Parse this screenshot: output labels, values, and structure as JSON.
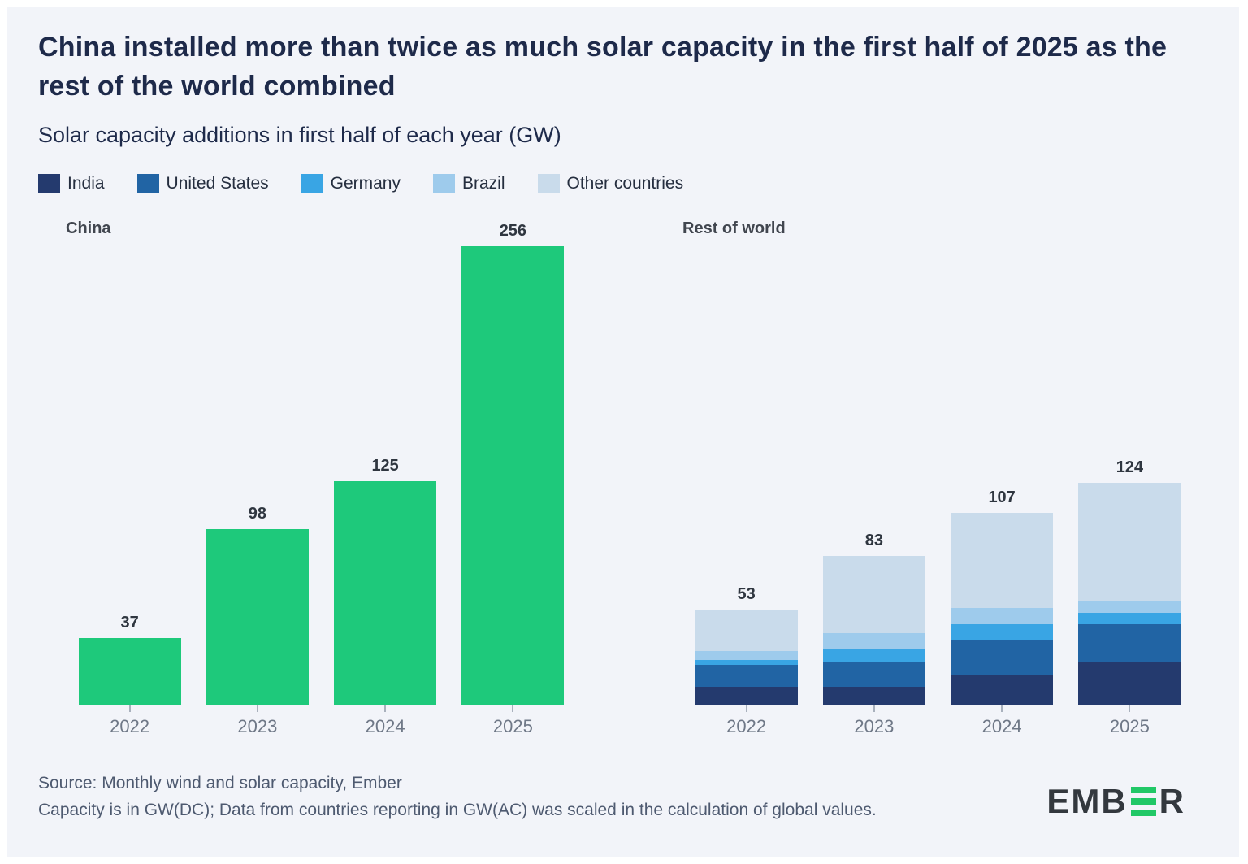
{
  "header": {
    "title": "China installed more than twice as much solar capacity in the first half of 2025 as the rest of the world combined",
    "subtitle": "Solar capacity additions in first half of each year (GW)"
  },
  "legend": [
    {
      "label": "India",
      "color": "#243A6E"
    },
    {
      "label": "United States",
      "color": "#2164A4"
    },
    {
      "label": "Germany",
      "color": "#39A5E4"
    },
    {
      "label": "Brazil",
      "color": "#9ECBEC"
    },
    {
      "label": "Other countries",
      "color": "#C9DBEB"
    }
  ],
  "chart_data": [
    {
      "type": "bar",
      "title": "China",
      "categories": [
        "2022",
        "2023",
        "2024",
        "2025"
      ],
      "values": [
        37,
        98,
        125,
        256
      ],
      "color": "#1EC97B",
      "ylabel": "GW",
      "ylim": [
        0,
        256
      ],
      "grid": false,
      "value_labels": true
    },
    {
      "type": "stacked-bar",
      "title": "Rest of world",
      "categories": [
        "2022",
        "2023",
        "2024",
        "2025"
      ],
      "totals": [
        53,
        83,
        107,
        124
      ],
      "series": [
        {
          "name": "India",
          "color": "#243A6E",
          "values": [
            10,
            10,
            16,
            24
          ]
        },
        {
          "name": "United States",
          "color": "#2164A4",
          "values": [
            12,
            14,
            20,
            21
          ]
        },
        {
          "name": "Germany",
          "color": "#39A5E4",
          "values": [
            3,
            7,
            9,
            6
          ]
        },
        {
          "name": "Brazil",
          "color": "#9ECBEC",
          "values": [
            5,
            9,
            9,
            7
          ]
        },
        {
          "name": "Other countries",
          "color": "#C9DBEB",
          "values": [
            23,
            43,
            53,
            66
          ]
        }
      ],
      "ylabel": "GW",
      "ylim": [
        0,
        256
      ],
      "grid": false,
      "value_labels": true
    }
  ],
  "footer": {
    "source_line1": "Source: Monthly wind and solar capacity, Ember",
    "source_line2": "Capacity is in GW(DC); Data from countries reporting in GW(AC) was scaled in the calculation of global values.",
    "logo_left": "EMB",
    "logo_right": "R",
    "logo_green": "#21C867"
  }
}
